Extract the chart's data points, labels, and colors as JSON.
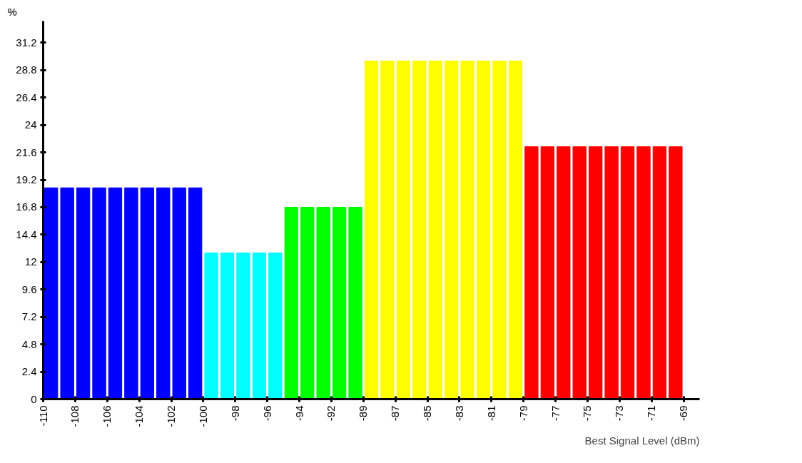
{
  "chart_data": {
    "type": "bar",
    "xlabel": "Best Signal Level (dBm)",
    "ylabel": "%",
    "categories": [
      "-110",
      null,
      "-108",
      null,
      "-106",
      null,
      "-104",
      null,
      "-102",
      null,
      "-100",
      null,
      "-98",
      null,
      "-96",
      null,
      "-94",
      null,
      "-92",
      null,
      "-89",
      null,
      "-87",
      null,
      "-85",
      null,
      "-83",
      null,
      "-81",
      null,
      "-79",
      null,
      "-77",
      null,
      "-75",
      null,
      "-73",
      null,
      "-71",
      null
    ],
    "annotations": [
      "-69"
    ],
    "values": [
      18.5,
      18.5,
      18.5,
      18.5,
      18.5,
      18.5,
      18.5,
      18.5,
      18.5,
      18.5,
      12.8,
      12.8,
      12.8,
      12.8,
      12.8,
      16.8,
      16.8,
      16.8,
      16.8,
      16.8,
      29.6,
      29.6,
      29.6,
      29.6,
      29.6,
      29.6,
      29.6,
      29.6,
      29.6,
      29.6,
      22.1,
      22.1,
      22.1,
      22.1,
      22.1,
      22.1,
      22.1,
      22.1,
      22.1,
      22.1
    ],
    "colors": [
      "#0000ff",
      "#0000ff",
      "#0000ff",
      "#0000ff",
      "#0000ff",
      "#0000ff",
      "#0000ff",
      "#0000ff",
      "#0000ff",
      "#0000ff",
      "#00ffff",
      "#00ffff",
      "#00ffff",
      "#00ffff",
      "#00ffff",
      "#00ff00",
      "#00ff00",
      "#00ff00",
      "#00ff00",
      "#00ff00",
      "#ffff00",
      "#ffff00",
      "#ffff00",
      "#ffff00",
      "#ffff00",
      "#ffff00",
      "#ffff00",
      "#ffff00",
      "#ffff00",
      "#ffff00",
      "#ff0000",
      "#ff0000",
      "#ff0000",
      "#ff0000",
      "#ff0000",
      "#ff0000",
      "#ff0000",
      "#ff0000",
      "#ff0000",
      "#ff0000"
    ],
    "ylim": [
      0,
      33.1
    ],
    "yticks": [
      0,
      2.4,
      4.8,
      7.2,
      9.6,
      12,
      14.4,
      16.8,
      19.2,
      21.6,
      24,
      26.4,
      28.8,
      31.2
    ],
    "grid": false
  }
}
